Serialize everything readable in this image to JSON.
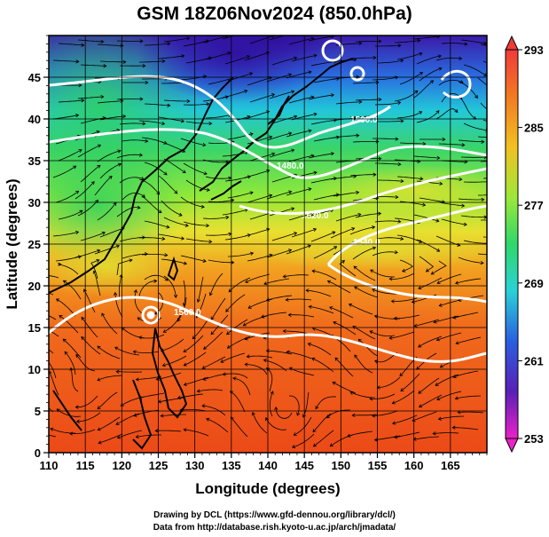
{
  "title": "GSM 18Z06Nov2024 (850.0hPa)",
  "x_axis": {
    "label": "Longitude (degrees)",
    "ticks": [
      "110",
      "115",
      "120",
      "125",
      "130",
      "135",
      "140",
      "145",
      "150",
      "155",
      "160",
      "165"
    ]
  },
  "y_axis": {
    "label": "Latitude (degrees)",
    "ticks": [
      "0",
      "5",
      "10",
      "15",
      "20",
      "25",
      "30",
      "35",
      "40",
      "45"
    ]
  },
  "colorbar": {
    "ticks": [
      "293",
      "285",
      "277",
      "269",
      "261",
      "253"
    ],
    "min": 253,
    "max": 293
  },
  "contours": [
    {
      "label": "1500.0"
    },
    {
      "label": "1480.0"
    },
    {
      "label": "1520.0"
    },
    {
      "label": "1540.0"
    },
    {
      "label": "1560.0"
    }
  ],
  "footer": {
    "line1": "Drawing by DCL (https://www.gfd-dennou.org/library/dcl/)",
    "line2": "Data from http://database.rish.kyoto-u.ac.jp/arch/jmadata/"
  }
}
